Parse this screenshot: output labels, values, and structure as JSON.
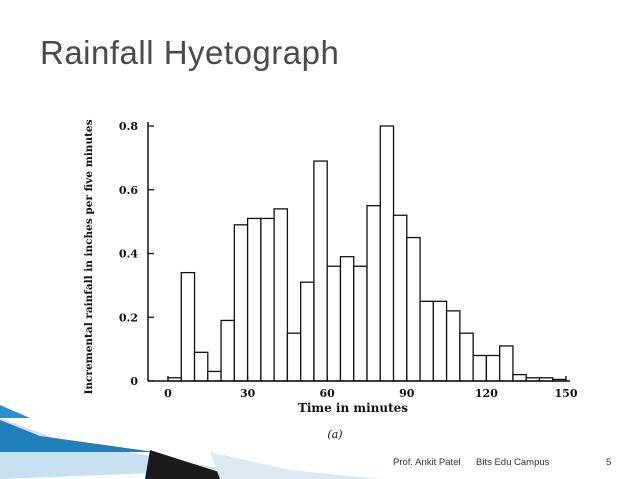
{
  "slide": {
    "title": "Rainfall Hyetograph",
    "footer_author": "Prof. Ankit Patel",
    "footer_org": "Bits Edu Campus",
    "page_number": "5"
  },
  "chart_data": {
    "type": "bar",
    "title": "",
    "xlabel": "Time in minutes",
    "ylabel": "Incremental rainfall in inches per five minutes",
    "caption": "(a)",
    "x_ticks": [
      0,
      30,
      60,
      90,
      120,
      150
    ],
    "y_ticks": [
      0,
      0.2,
      0.4,
      0.6,
      0.8
    ],
    "y_tick_labels": [
      "0",
      "0.2",
      "0.4",
      "0.6",
      "0.8"
    ],
    "xlim": [
      -10,
      152
    ],
    "ylim": [
      0,
      0.82
    ],
    "bin_width": 5,
    "bin_starts": [
      0,
      5,
      10,
      15,
      20,
      25,
      30,
      35,
      40,
      45,
      50,
      55,
      60,
      65,
      70,
      75,
      80,
      85,
      90,
      95,
      100,
      105,
      110,
      115,
      120,
      125,
      130,
      135,
      140,
      145
    ],
    "values": [
      0.01,
      0.34,
      0.09,
      0.03,
      0.19,
      0.49,
      0.51,
      0.51,
      0.54,
      0.15,
      0.31,
      0.69,
      0.36,
      0.39,
      0.36,
      0.55,
      0.8,
      0.52,
      0.45,
      0.25,
      0.25,
      0.22,
      0.15,
      0.08,
      0.08,
      0.11,
      0.02,
      0.01,
      0.01,
      0.005
    ],
    "grid": false,
    "legend": "none"
  },
  "colors": {
    "title": "#4a4a4a",
    "bar_fill": "#ffffff",
    "bar_stroke": "#111111",
    "deco_light_blue": "#bcd7ea",
    "deco_blue": "#1f7fb8",
    "deco_dark": "#1a1a1a"
  }
}
